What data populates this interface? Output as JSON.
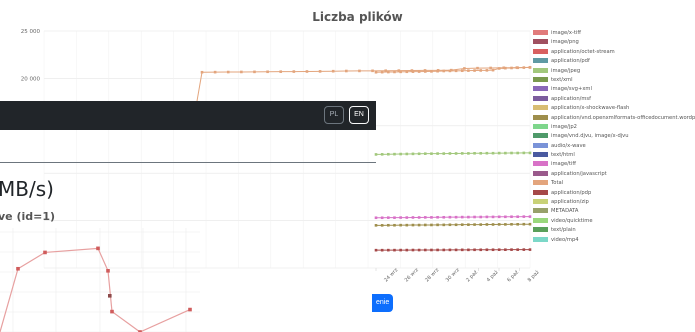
{
  "chart_data": [
    {
      "type": "line",
      "title": "Liczba plików",
      "y_ticks": [
        "25 000",
        "20 000"
      ],
      "ylim": [
        0,
        25000
      ],
      "x_tick_labels": [
        "24 wrz",
        "26 wrz",
        "28 wrz",
        "30 wrz",
        "2 paź",
        "4 paź",
        "6 paź",
        "8 paź"
      ],
      "grid": true,
      "legend_position": "right",
      "series": [
        {
          "name": "image/x-tiff",
          "color": "#e17b7b",
          "values": []
        },
        {
          "name": "image/png",
          "color": "#a05060",
          "values": []
        },
        {
          "name": "application/octet-stream",
          "color": "#d86060",
          "values": []
        },
        {
          "name": "application/pdf",
          "color": "#5f9aa3",
          "values": []
        },
        {
          "name": "image/jpeg",
          "color": "#a2c87c",
          "values": [
            11980,
            11990,
            12000,
            12010,
            12020,
            12030,
            12040,
            12050,
            12060,
            12060,
            12070,
            12070,
            12080,
            12080,
            12090,
            12090,
            12100,
            12100,
            12110,
            12110,
            12120,
            12120,
            12130,
            12130,
            12140,
            12140
          ]
        },
        {
          "name": "text/xml",
          "color": "#7a9a4e",
          "values": []
        },
        {
          "name": "image/svg+xml",
          "color": "#8a68b8",
          "values": []
        },
        {
          "name": "application/msf",
          "color": "#7c5d9e",
          "values": []
        },
        {
          "name": "application/x-shockwave-flash",
          "color": "#d8bd72",
          "values": []
        },
        {
          "name": "application/vnd.openxmlformats-officedocument.wordprocessingml",
          "color": "#9e8e4c",
          "values": [
            4500,
            4500,
            4510,
            4510,
            4520,
            4520,
            4530,
            4530,
            4540,
            4540,
            4550,
            4550,
            4560,
            4560,
            4570,
            4570,
            4580,
            4580,
            4590,
            4590,
            4600,
            4600,
            4610,
            4610,
            4620,
            4620
          ]
        },
        {
          "name": "image/jp2",
          "color": "#7ed68c",
          "values": []
        },
        {
          "name": "image/vnd.djvu, image/x-djvu",
          "color": "#4f9a6a",
          "values": []
        },
        {
          "name": "audio/x-wave",
          "color": "#7a93d8",
          "values": []
        },
        {
          "name": "text/html",
          "color": "#4a5aa0",
          "values": []
        },
        {
          "name": "image/tiff",
          "color": "#d872c7",
          "values": [
            5300,
            5300,
            5310,
            5310,
            5320,
            5320,
            5330,
            5330,
            5340,
            5340,
            5350,
            5350,
            5360,
            5360,
            5370,
            5370,
            5380,
            5380,
            5390,
            5390,
            5400,
            5400,
            5410,
            5410,
            5420,
            5420
          ]
        },
        {
          "name": "application/javascript",
          "color": "#9a5a8c",
          "values": []
        },
        {
          "name": "Total",
          "color": "#e3a57d",
          "values": [
            20650,
            20660,
            20670,
            20680,
            20690,
            20700,
            20710,
            20720,
            20730,
            20740,
            20760,
            20780,
            20790,
            20800,
            20810,
            20820,
            20830,
            20840,
            20850,
            20870,
            21050,
            21080,
            21100,
            21120,
            21140,
            21160
          ]
        },
        {
          "name": "application/pdp",
          "color": "#a54848",
          "values": [
            1880,
            1880,
            1885,
            1885,
            1890,
            1890,
            1895,
            1895,
            1900,
            1900,
            1905,
            1905,
            1910,
            1910,
            1915,
            1915,
            1920,
            1920,
            1925,
            1925,
            1930,
            1930,
            1935,
            1935,
            1940,
            1940
          ]
        },
        {
          "name": "application/zip",
          "color": "#c9d278",
          "values": []
        },
        {
          "name": "METADATA",
          "color": "#98a16a",
          "values": []
        },
        {
          "name": "video/quicktime",
          "color": "#9ad87c",
          "values": []
        },
        {
          "name": "text/plain",
          "color": "#5aa05a",
          "values": []
        },
        {
          "name": "video/mp4",
          "color": "#7cd8c8",
          "values": []
        }
      ]
    },
    {
      "type": "line",
      "title": "MB/s)",
      "subtitle": "ve (id=1)",
      "series": [
        {
          "name": "",
          "color": "#d05c5c",
          "values": [
            null,
            62,
            78,
            82,
            60,
            20,
            0,
            22
          ]
        }
      ]
    }
  ],
  "navbar": {
    "lang_pl": "PL",
    "lang_en": "EN"
  },
  "button": {
    "label": "enie"
  }
}
